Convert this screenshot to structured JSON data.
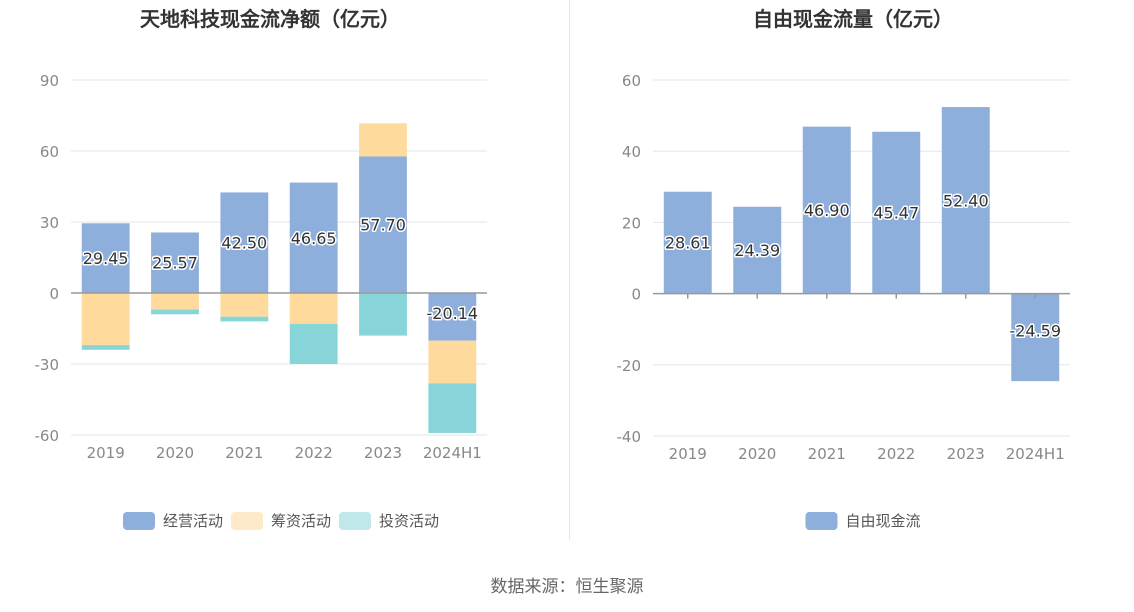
{
  "source": "数据来源：恒生聚源",
  "chart_data": [
    {
      "type": "bar",
      "stacked": true,
      "title": "天地科技现金流净额（亿元）",
      "categories": [
        "2019",
        "2020",
        "2021",
        "2022",
        "2023",
        "2024H1"
      ],
      "ylim": [
        -60,
        90
      ],
      "yticks": [
        90,
        60,
        30,
        0,
        -30,
        -60
      ],
      "grid": true,
      "legend_position": "bottom",
      "series": [
        {
          "name": "经营活动",
          "color": "#8eaedb",
          "values": [
            29.45,
            25.57,
            42.5,
            46.65,
            57.7,
            -20.14
          ],
          "labels": [
            "29.45",
            "25.57",
            "42.50",
            "46.65",
            "57.70",
            "-20.14"
          ]
        },
        {
          "name": "筹资活动",
          "color": "#fedb9d",
          "legend_color": "#feeacb",
          "values": [
            -22,
            -7,
            -10,
            -13,
            14,
            -18
          ]
        },
        {
          "name": "投资活动",
          "color": "#88d5d9",
          "legend_color": "#c0e8ea",
          "values": [
            -2,
            -2,
            -2,
            -17,
            -18,
            -21
          ]
        }
      ]
    },
    {
      "type": "bar",
      "title": "自由现金流量（亿元）",
      "categories": [
        "2019",
        "2020",
        "2021",
        "2022",
        "2023",
        "2024H1"
      ],
      "ylim": [
        -40,
        60
      ],
      "yticks": [
        60,
        40,
        20,
        0,
        -20,
        -40
      ],
      "grid": true,
      "legend_position": "bottom",
      "series": [
        {
          "name": "自由现金流",
          "color": "#8eaedb",
          "values": [
            28.61,
            24.39,
            46.9,
            45.47,
            52.4,
            -24.59
          ],
          "labels": [
            "28.61",
            "24.39",
            "46.90",
            "45.47",
            "52.40",
            "-24.59"
          ]
        }
      ]
    }
  ]
}
